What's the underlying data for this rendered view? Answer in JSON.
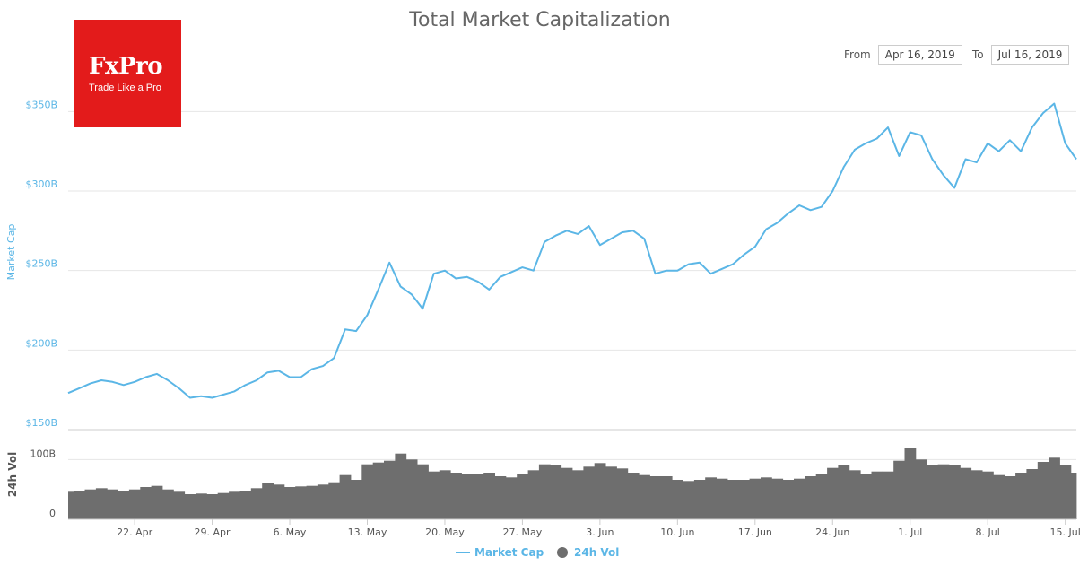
{
  "logo": {
    "name": "FxPro",
    "tagline": "Trade Like a Pro",
    "color": "#e31b1b"
  },
  "range": {
    "from_label": "From",
    "from_value": "Apr 16, 2019",
    "to_label": "To",
    "to_value": "Jul 16, 2019"
  },
  "colors": {
    "market_cap": "#5bb6e6",
    "volume": "#6e6e6e",
    "title": "#666666",
    "axis_text": "#666666",
    "grid": "#e6e6e6"
  },
  "chart_data": [
    {
      "type": "line",
      "title": "Total Market Capitalization",
      "ylabel": "Market Cap",
      "ylim": [
        150,
        375
      ],
      "y_ticks": [
        {
          "value": 150,
          "label": "$150B"
        },
        {
          "value": 200,
          "label": "$200B"
        },
        {
          "value": 250,
          "label": "$250B"
        },
        {
          "value": 300,
          "label": "$300B"
        },
        {
          "value": 350,
          "label": "$350B"
        }
      ],
      "xlim": [
        "2019-04-16",
        "2019-07-16"
      ],
      "x_ticks": [
        {
          "date": "2019-04-22",
          "label": "22. Apr"
        },
        {
          "date": "2019-04-29",
          "label": "29. Apr"
        },
        {
          "date": "2019-05-06",
          "label": "6. May"
        },
        {
          "date": "2019-05-13",
          "label": "13. May"
        },
        {
          "date": "2019-05-20",
          "label": "20. May"
        },
        {
          "date": "2019-05-27",
          "label": "27. May"
        },
        {
          "date": "2019-06-03",
          "label": "3. Jun"
        },
        {
          "date": "2019-06-10",
          "label": "10. Jun"
        },
        {
          "date": "2019-06-17",
          "label": "17. Jun"
        },
        {
          "date": "2019-06-24",
          "label": "24. Jun"
        },
        {
          "date": "2019-07-01",
          "label": "1. Jul"
        },
        {
          "date": "2019-07-08",
          "label": "8. Jul"
        },
        {
          "date": "2019-07-15",
          "label": "15. Jul"
        }
      ],
      "series": [
        {
          "name": "Market Cap",
          "x": [
            "2019-04-16",
            "2019-04-17",
            "2019-04-18",
            "2019-04-19",
            "2019-04-20",
            "2019-04-21",
            "2019-04-22",
            "2019-04-23",
            "2019-04-24",
            "2019-04-25",
            "2019-04-26",
            "2019-04-27",
            "2019-04-28",
            "2019-04-29",
            "2019-04-30",
            "2019-05-01",
            "2019-05-02",
            "2019-05-03",
            "2019-05-04",
            "2019-05-05",
            "2019-05-06",
            "2019-05-07",
            "2019-05-08",
            "2019-05-09",
            "2019-05-10",
            "2019-05-11",
            "2019-05-12",
            "2019-05-13",
            "2019-05-14",
            "2019-05-15",
            "2019-05-16",
            "2019-05-17",
            "2019-05-18",
            "2019-05-19",
            "2019-05-20",
            "2019-05-21",
            "2019-05-22",
            "2019-05-23",
            "2019-05-24",
            "2019-05-25",
            "2019-05-26",
            "2019-05-27",
            "2019-05-28",
            "2019-05-29",
            "2019-05-30",
            "2019-05-31",
            "2019-06-01",
            "2019-06-02",
            "2019-06-03",
            "2019-06-04",
            "2019-06-05",
            "2019-06-06",
            "2019-06-07",
            "2019-06-08",
            "2019-06-09",
            "2019-06-10",
            "2019-06-11",
            "2019-06-12",
            "2019-06-13",
            "2019-06-14",
            "2019-06-15",
            "2019-06-16",
            "2019-06-17",
            "2019-06-18",
            "2019-06-19",
            "2019-06-20",
            "2019-06-21",
            "2019-06-22",
            "2019-06-23",
            "2019-06-24",
            "2019-06-25",
            "2019-06-26",
            "2019-06-27",
            "2019-06-28",
            "2019-06-29",
            "2019-06-30",
            "2019-07-01",
            "2019-07-02",
            "2019-07-03",
            "2019-07-04",
            "2019-07-05",
            "2019-07-06",
            "2019-07-07",
            "2019-07-08",
            "2019-07-09",
            "2019-07-10",
            "2019-07-11",
            "2019-07-12",
            "2019-07-13",
            "2019-07-14",
            "2019-07-15",
            "2019-07-16"
          ],
          "values": [
            173,
            176,
            179,
            181,
            180,
            178,
            180,
            183,
            185,
            181,
            176,
            170,
            171,
            170,
            172,
            174,
            178,
            181,
            186,
            187,
            183,
            183,
            188,
            190,
            195,
            213,
            212,
            222,
            238,
            255,
            240,
            235,
            226,
            248,
            250,
            245,
            246,
            243,
            238,
            246,
            249,
            252,
            250,
            268,
            272,
            275,
            273,
            278,
            266,
            270,
            274,
            275,
            270,
            248,
            250,
            250,
            254,
            255,
            248,
            251,
            254,
            260,
            265,
            276,
            280,
            286,
            291,
            288,
            290,
            300,
            315,
            326,
            330,
            333,
            340,
            322,
            337,
            335,
            320,
            310,
            302,
            320,
            318,
            330,
            325,
            332,
            325,
            340,
            349,
            355,
            330,
            320
          ]
        },
        {
          "name": "24h Vol",
          "x": [
            "2019-04-16",
            "2019-04-17",
            "2019-04-18",
            "2019-04-19",
            "2019-04-20",
            "2019-04-21",
            "2019-04-22",
            "2019-04-23",
            "2019-04-24",
            "2019-04-25",
            "2019-04-26",
            "2019-04-27",
            "2019-04-28",
            "2019-04-29",
            "2019-04-30",
            "2019-05-01",
            "2019-05-02",
            "2019-05-03",
            "2019-05-04",
            "2019-05-05",
            "2019-05-06",
            "2019-05-07",
            "2019-05-08",
            "2019-05-09",
            "2019-05-10",
            "2019-05-11",
            "2019-05-12",
            "2019-05-13",
            "2019-05-14",
            "2019-05-15",
            "2019-05-16",
            "2019-05-17",
            "2019-05-18",
            "2019-05-19",
            "2019-05-20",
            "2019-05-21",
            "2019-05-22",
            "2019-05-23",
            "2019-05-24",
            "2019-05-25",
            "2019-05-26",
            "2019-05-27",
            "2019-05-28",
            "2019-05-29",
            "2019-05-30",
            "2019-05-31",
            "2019-06-01",
            "2019-06-02",
            "2019-06-03",
            "2019-06-04",
            "2019-06-05",
            "2019-06-06",
            "2019-06-07",
            "2019-06-08",
            "2019-06-09",
            "2019-06-10",
            "2019-06-11",
            "2019-06-12",
            "2019-06-13",
            "2019-06-14",
            "2019-06-15",
            "2019-06-16",
            "2019-06-17",
            "2019-06-18",
            "2019-06-19",
            "2019-06-20",
            "2019-06-21",
            "2019-06-22",
            "2019-06-23",
            "2019-06-24",
            "2019-06-25",
            "2019-06-26",
            "2019-06-27",
            "2019-06-28",
            "2019-06-29",
            "2019-06-30",
            "2019-07-01",
            "2019-07-02",
            "2019-07-03",
            "2019-07-04",
            "2019-07-05",
            "2019-07-06",
            "2019-07-07",
            "2019-07-08",
            "2019-07-09",
            "2019-07-10",
            "2019-07-11",
            "2019-07-12",
            "2019-07-13",
            "2019-07-14",
            "2019-07-15",
            "2019-07-16"
          ],
          "values": [
            46,
            48,
            50,
            52,
            50,
            48,
            50,
            54,
            56,
            50,
            46,
            42,
            43,
            42,
            44,
            46,
            48,
            52,
            60,
            58,
            54,
            55,
            56,
            58,
            62,
            74,
            66,
            92,
            95,
            98,
            110,
            100,
            92,
            80,
            82,
            78,
            75,
            76,
            78,
            72,
            70,
            75,
            82,
            92,
            90,
            86,
            82,
            88,
            94,
            88,
            85,
            78,
            74,
            72,
            72,
            66,
            64,
            66,
            70,
            68,
            66,
            66,
            68,
            70,
            68,
            66,
            68,
            72,
            76,
            86,
            90,
            82,
            76,
            80,
            80,
            98,
            120,
            100,
            90,
            92,
            90,
            86,
            82,
            80,
            74,
            72,
            78,
            84,
            96,
            103,
            90,
            78
          ]
        }
      ],
      "volume_ylim": [
        0,
        150
      ],
      "volume_ylabel": "24h Vol",
      "volume_ticks": [
        {
          "value": 0,
          "label": "0"
        },
        {
          "value": 100,
          "label": "100B"
        }
      ],
      "grid": true,
      "legend": "bottom-center"
    }
  ]
}
